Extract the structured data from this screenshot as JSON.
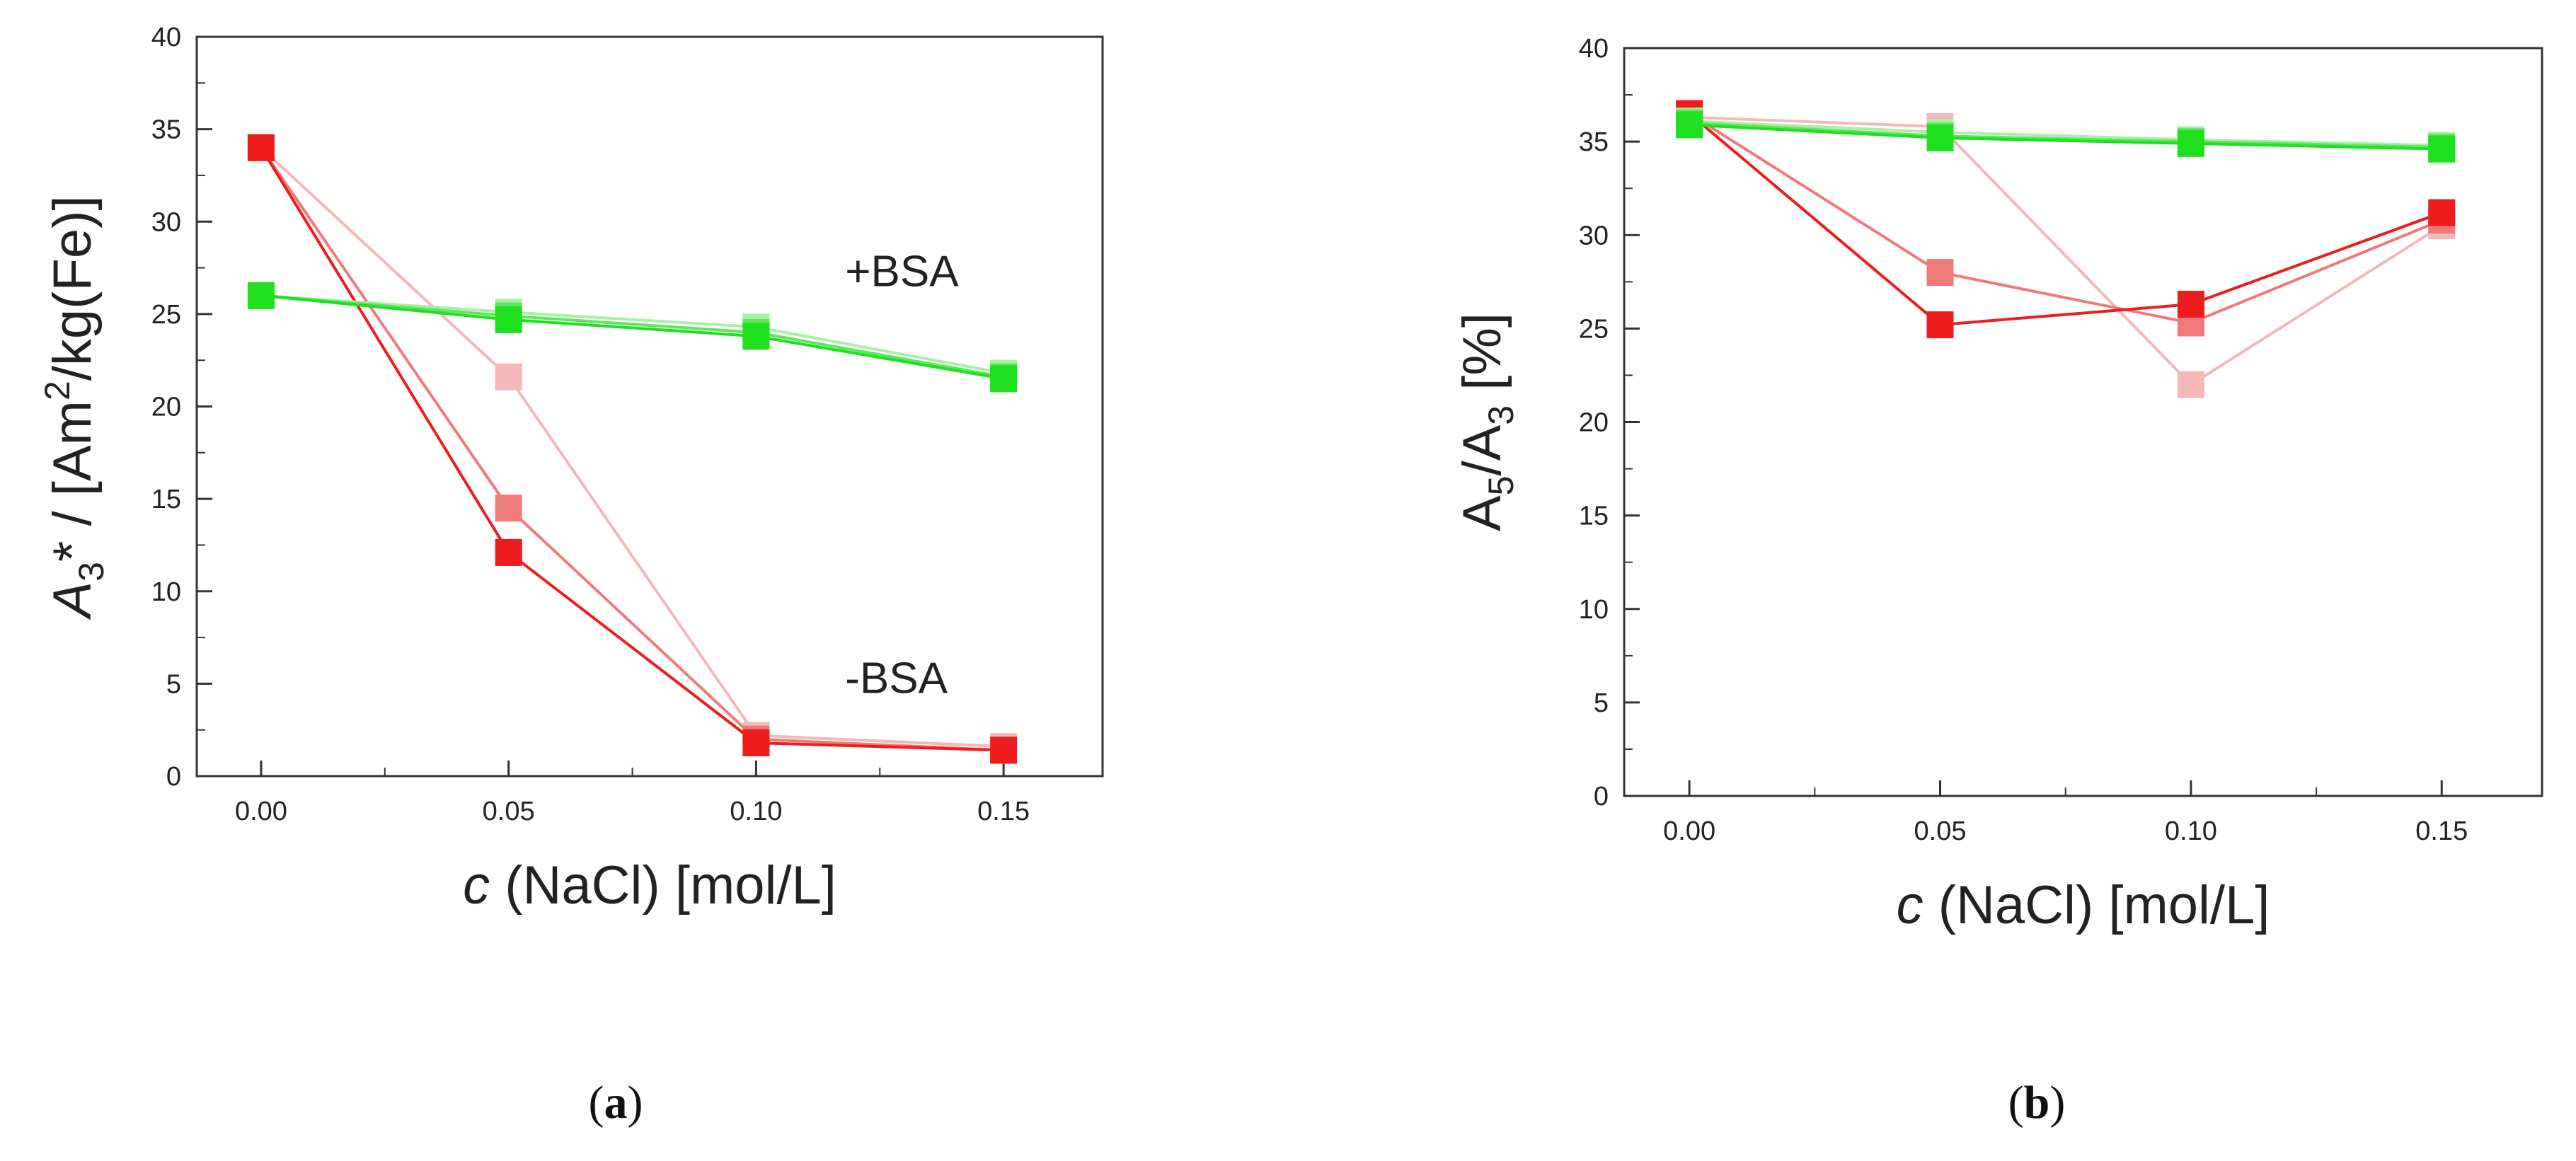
{
  "chart_data": [
    {
      "type": "line",
      "panel_label": "(a)",
      "panel_letter": "a",
      "xlabel_var": "c",
      "xlabel_rest": " (NaCl) [mol/L]",
      "ylabel_parts": [
        "A",
        "3",
        "* / [Am",
        "2",
        "/kg(Fe)]"
      ],
      "x": [
        0.0,
        0.05,
        0.1,
        0.15
      ],
      "xlim": [
        -0.013,
        0.17
      ],
      "ylim": [
        0,
        40
      ],
      "xticks": [
        "0.00",
        "0.05",
        "0.10",
        "0.15"
      ],
      "yticks": [
        "0",
        "5",
        "10",
        "15",
        "20",
        "25",
        "30",
        "35",
        "40"
      ],
      "annotations": [
        {
          "text": "+BSA",
          "x": 0.118,
          "y": 26.5
        },
        {
          "text": "-BSA",
          "x": 0.118,
          "y": 4.5
        }
      ],
      "series": [
        {
          "color": "#f5b8b8",
          "values": [
            34.0,
            21.6,
            2.2,
            1.6
          ]
        },
        {
          "color": "#f07a7a",
          "values": [
            34.0,
            14.5,
            2.0,
            1.4
          ]
        },
        {
          "color": "#ee1c1c",
          "values": [
            34.0,
            12.1,
            1.8,
            1.4
          ]
        },
        {
          "color": "#a8f0a8",
          "values": [
            26.0,
            25.1,
            24.3,
            21.8
          ]
        },
        {
          "color": "#5ee65e",
          "values": [
            26.0,
            24.9,
            24.0,
            21.6
          ]
        },
        {
          "color": "#1ee01e",
          "values": [
            26.0,
            24.7,
            23.8,
            21.5
          ]
        }
      ],
      "grid": false
    },
    {
      "type": "line",
      "panel_label": "(b)",
      "panel_letter": "b",
      "xlabel_var": "c",
      "xlabel_rest": " (NaCl) [mol/L]",
      "ylabel_parts": [
        "A",
        "5",
        "/A",
        "3",
        " [%]"
      ],
      "x": [
        0.0,
        0.05,
        0.1,
        0.15
      ],
      "xlim": [
        -0.013,
        0.17
      ],
      "ylim": [
        0,
        40
      ],
      "xticks": [
        "0.00",
        "0.05",
        "0.10",
        "0.15"
      ],
      "yticks": [
        "0",
        "5",
        "10",
        "15",
        "20",
        "25",
        "30",
        "35",
        "40"
      ],
      "annotations": [],
      "series": [
        {
          "color": "#f5b8b8",
          "values": [
            36.3,
            35.8,
            22.0,
            30.5
          ]
        },
        {
          "color": "#f07a7a",
          "values": [
            36.5,
            28.0,
            25.3,
            30.8
          ]
        },
        {
          "color": "#ee1c1c",
          "values": [
            36.5,
            25.2,
            26.3,
            31.2
          ]
        },
        {
          "color": "#a8f0a8",
          "values": [
            36.1,
            35.5,
            35.1,
            34.8
          ]
        },
        {
          "color": "#5ee65e",
          "values": [
            36.0,
            35.3,
            35.0,
            34.7
          ]
        },
        {
          "color": "#1ee01e",
          "values": [
            35.9,
            35.2,
            34.9,
            34.6
          ]
        }
      ],
      "grid": false
    }
  ]
}
